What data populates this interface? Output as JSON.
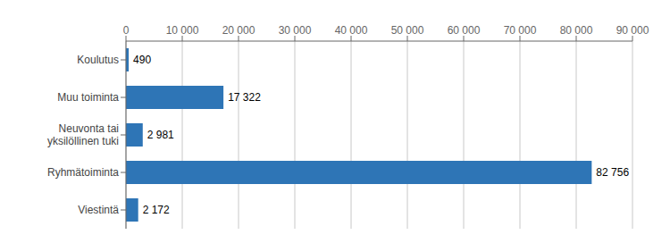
{
  "chart_data": {
    "type": "bar",
    "orientation": "horizontal",
    "categories": [
      "Viestintä",
      "Ryhmätoiminta",
      "Neuvonta tai\nyksilöllinen tuki",
      "Muu toiminta",
      "Koulutus"
    ],
    "values": [
      2172,
      82756,
      2981,
      17322,
      490
    ],
    "value_labels": [
      "2 172",
      "82 756",
      "2 981",
      "17 322",
      "490"
    ],
    "data_labels": true,
    "color": "#2E75B6",
    "xlim": [
      0,
      90000
    ],
    "xticks": [
      0,
      {
        "value": 10000,
        "label": "10 000"
      },
      {
        "value": 20000,
        "label": "20 000"
      },
      {
        "value": 30000,
        "label": "30 000"
      },
      {
        "value": 40000,
        "label": "40 000"
      },
      {
        "value": 50000,
        "label": "50 000"
      },
      {
        "value": 60000,
        "label": "60 000"
      },
      {
        "value": 70000,
        "label": "70 000"
      },
      {
        "value": 80000,
        "label": "80 000"
      },
      {
        "value": 90000,
        "label": "90 000"
      }
    ],
    "grid": true
  }
}
